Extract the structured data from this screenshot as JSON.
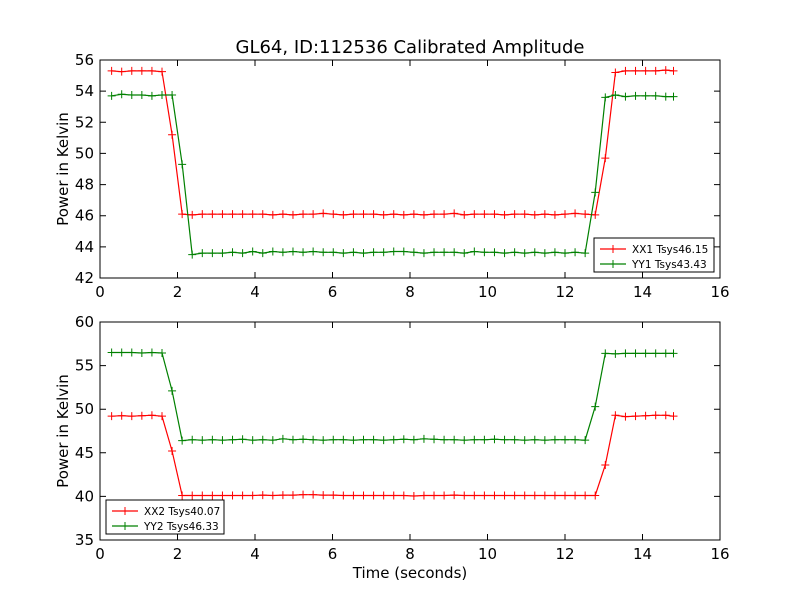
{
  "figure": {
    "title": "GL64, ID:112536 Calibrated Amplitude",
    "xlabel": "Time (seconds)"
  },
  "colors": {
    "red": "#ff0000",
    "green": "#008000"
  },
  "chart_data": [
    {
      "type": "line",
      "title": "GL64, ID:112536 Calibrated Amplitude",
      "xlabel": "",
      "ylabel": "Power in Kelvin",
      "xlim": [
        0,
        16
      ],
      "ylim": [
        42,
        56
      ],
      "xticks": [
        0,
        2,
        4,
        6,
        8,
        10,
        12,
        14,
        16
      ],
      "yticks": [
        42,
        44,
        46,
        48,
        50,
        52,
        54,
        56
      ],
      "grid": false,
      "legend_position": "lower-right",
      "x": [
        0.3,
        0.56,
        0.82,
        1.08,
        1.34,
        1.6,
        1.86,
        2.12,
        2.38,
        2.64,
        2.9,
        3.16,
        3.42,
        3.68,
        3.94,
        4.2,
        4.46,
        4.72,
        4.98,
        5.24,
        5.5,
        5.76,
        6.02,
        6.28,
        6.54,
        6.8,
        7.06,
        7.32,
        7.58,
        7.84,
        8.1,
        8.36,
        8.62,
        8.88,
        9.14,
        9.4,
        9.66,
        9.92,
        10.18,
        10.44,
        10.7,
        10.96,
        11.22,
        11.48,
        11.74,
        12.0,
        12.26,
        12.52,
        12.78,
        13.04,
        13.3,
        13.56,
        13.82,
        14.08,
        14.34,
        14.6,
        14.8
      ],
      "series": [
        {
          "name": "XX1 Tsys46.15",
          "color": "#ff0000",
          "values": [
            55.3,
            55.25,
            55.3,
            55.3,
            55.3,
            55.25,
            51.2,
            46.1,
            46.05,
            46.1,
            46.1,
            46.1,
            46.1,
            46.1,
            46.1,
            46.1,
            46.05,
            46.1,
            46.05,
            46.1,
            46.1,
            46.15,
            46.1,
            46.05,
            46.1,
            46.1,
            46.1,
            46.05,
            46.1,
            46.05,
            46.1,
            46.05,
            46.1,
            46.1,
            46.15,
            46.05,
            46.1,
            46.1,
            46.1,
            46.05,
            46.1,
            46.1,
            46.05,
            46.1,
            46.05,
            46.1,
            46.15,
            46.1,
            46.05,
            49.7,
            55.2,
            55.3,
            55.3,
            55.3,
            55.3,
            55.35,
            55.3
          ]
        },
        {
          "name": "YY1 Tsys43.43",
          "color": "#008000",
          "values": [
            53.7,
            53.8,
            53.75,
            53.75,
            53.7,
            53.75,
            53.75,
            49.3,
            43.5,
            43.6,
            43.6,
            43.6,
            43.65,
            43.6,
            43.7,
            43.6,
            43.7,
            43.65,
            43.7,
            43.65,
            43.7,
            43.65,
            43.65,
            43.6,
            43.65,
            43.6,
            43.65,
            43.65,
            43.7,
            43.7,
            43.65,
            43.6,
            43.65,
            43.65,
            43.65,
            43.6,
            43.7,
            43.65,
            43.65,
            43.6,
            43.65,
            43.6,
            43.65,
            43.6,
            43.65,
            43.6,
            43.65,
            43.6,
            47.5,
            53.6,
            53.75,
            53.65,
            53.7,
            53.7,
            53.7,
            53.65,
            53.65
          ]
        }
      ]
    },
    {
      "type": "line",
      "title": "",
      "xlabel": "Time (seconds)",
      "ylabel": "Power in Kelvin",
      "xlim": [
        0,
        16
      ],
      "ylim": [
        35,
        60
      ],
      "xticks": [
        0,
        2,
        4,
        6,
        8,
        10,
        12,
        14,
        16
      ],
      "yticks": [
        35,
        40,
        45,
        50,
        55,
        60
      ],
      "grid": false,
      "legend_position": "lower-left",
      "x": [
        0.3,
        0.56,
        0.82,
        1.08,
        1.34,
        1.6,
        1.86,
        2.12,
        2.38,
        2.64,
        2.9,
        3.16,
        3.42,
        3.68,
        3.94,
        4.2,
        4.46,
        4.72,
        4.98,
        5.24,
        5.5,
        5.76,
        6.02,
        6.28,
        6.54,
        6.8,
        7.06,
        7.32,
        7.58,
        7.84,
        8.1,
        8.36,
        8.62,
        8.88,
        9.14,
        9.4,
        9.66,
        9.92,
        10.18,
        10.44,
        10.7,
        10.96,
        11.22,
        11.48,
        11.74,
        12.0,
        12.26,
        12.52,
        12.78,
        13.04,
        13.3,
        13.56,
        13.82,
        14.08,
        14.34,
        14.6,
        14.8
      ],
      "series": [
        {
          "name": "XX2 Tsys40.07",
          "color": "#ff0000",
          "values": [
            49.2,
            49.25,
            49.2,
            49.25,
            49.3,
            49.2,
            45.2,
            40.1,
            40.1,
            40.1,
            40.1,
            40.1,
            40.1,
            40.1,
            40.1,
            40.15,
            40.1,
            40.15,
            40.15,
            40.2,
            40.2,
            40.15,
            40.15,
            40.1,
            40.1,
            40.1,
            40.1,
            40.1,
            40.1,
            40.1,
            40.05,
            40.1,
            40.1,
            40.1,
            40.15,
            40.1,
            40.1,
            40.1,
            40.1,
            40.1,
            40.1,
            40.1,
            40.1,
            40.1,
            40.1,
            40.1,
            40.1,
            40.1,
            40.1,
            43.6,
            49.3,
            49.15,
            49.2,
            49.25,
            49.3,
            49.3,
            49.2
          ]
        },
        {
          "name": "YY2 Tsys46.33",
          "color": "#008000",
          "values": [
            56.5,
            56.5,
            56.5,
            56.45,
            56.5,
            56.45,
            52.1,
            46.4,
            46.5,
            46.45,
            46.5,
            46.45,
            46.5,
            46.55,
            46.45,
            46.5,
            46.45,
            46.6,
            46.5,
            46.55,
            46.5,
            46.45,
            46.5,
            46.5,
            46.45,
            46.5,
            46.5,
            46.45,
            46.5,
            46.55,
            46.5,
            46.6,
            46.55,
            46.5,
            46.5,
            46.45,
            46.5,
            46.5,
            46.55,
            46.5,
            46.5,
            46.45,
            46.5,
            46.45,
            46.5,
            46.5,
            46.5,
            46.45,
            50.3,
            56.4,
            56.35,
            56.4,
            56.4,
            56.4,
            56.4,
            56.4,
            56.4
          ]
        }
      ]
    }
  ]
}
